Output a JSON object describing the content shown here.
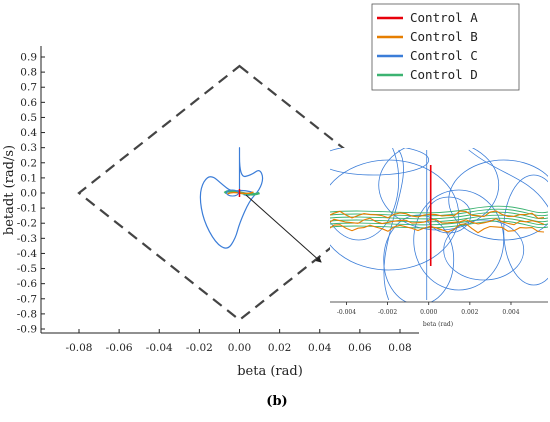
{
  "chart_data": {
    "type": "line",
    "xlabel": "beta (rad)",
    "ylabel": "betadt (rad/s)",
    "xlim": [
      -0.09,
      0.09
    ],
    "ylim": [
      -0.9,
      0.9
    ],
    "xticks": [
      "-0.08",
      "-0.06",
      "-0.04",
      "-0.02",
      "0.00",
      "0.02",
      "0.04",
      "0.06",
      "0.08"
    ],
    "yticks": [
      "0.9",
      "0.8",
      "0.7",
      "0.6",
      "0.5",
      "0.4",
      "0.3",
      "0.2",
      "0.1",
      "0.0",
      "-0.1",
      "-0.2",
      "-0.3",
      "-0.4",
      "-0.5",
      "-0.6",
      "-0.7",
      "-0.8",
      "-0.9"
    ],
    "legend_position": "top-right",
    "series": [
      {
        "name": "Control A",
        "color": "#e8000b"
      },
      {
        "name": "Control B",
        "color": "#e67e00"
      },
      {
        "name": "Control C",
        "color": "#3b7dd8"
      },
      {
        "name": "Control D",
        "color": "#3cb371"
      }
    ],
    "boundary": {
      "style": "dashed",
      "vertices": [
        [
          0.0,
          0.84
        ],
        [
          0.08,
          0.0
        ],
        [
          0.0,
          -0.84
        ],
        [
          -0.08,
          0.0
        ]
      ]
    },
    "trajectory_c": [
      [
        0.0,
        0.0
      ],
      [
        0.0,
        0.38
      ],
      [
        0.0,
        0.1
      ],
      [
        0.006,
        0.12
      ],
      [
        0.01,
        0.16
      ],
      [
        0.012,
        0.1
      ],
      [
        0.01,
        0.02
      ],
      [
        0.005,
        -0.05
      ],
      [
        0.0,
        -0.2
      ],
      [
        -0.002,
        -0.3
      ],
      [
        -0.006,
        -0.38
      ],
      [
        -0.012,
        -0.33
      ],
      [
        -0.018,
        -0.18
      ],
      [
        -0.02,
        -0.02
      ],
      [
        -0.018,
        0.08
      ],
      [
        -0.014,
        0.12
      ],
      [
        -0.008,
        0.05
      ],
      [
        -0.004,
        0.01
      ],
      [
        0.002,
        0.02
      ],
      [
        0.008,
        0.0
      ],
      [
        0.004,
        -0.02
      ],
      [
        0.0,
        0.0
      ]
    ],
    "inset": {
      "xlabel": "beta (rad)",
      "xlim": [
        -0.0048,
        0.0058
      ],
      "xticks": [
        "-0.004",
        "-0.002",
        "0.000",
        "0.002",
        "0.004"
      ]
    }
  },
  "caption": "(b)"
}
